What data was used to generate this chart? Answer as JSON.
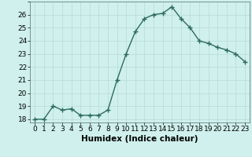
{
  "xlabel": "Humidex (Indice chaleur)",
  "x": [
    0,
    1,
    2,
    3,
    4,
    5,
    6,
    7,
    8,
    9,
    10,
    11,
    12,
    13,
    14,
    15,
    16,
    17,
    18,
    19,
    20,
    21,
    22,
    23
  ],
  "y": [
    18.0,
    18.0,
    19.0,
    18.7,
    18.8,
    18.3,
    18.3,
    18.3,
    18.7,
    21.0,
    23.0,
    24.7,
    25.7,
    26.0,
    26.1,
    26.6,
    25.7,
    25.0,
    24.0,
    23.8,
    23.5,
    23.3,
    23.0,
    22.4
  ],
  "line_color": "#2e6b5e",
  "marker": "+",
  "marker_size": 4,
  "bg_color": "#cff0ec",
  "grid_major_color": "#b8dbd6",
  "grid_minor_color": "#ddf5f2",
  "ylim": [
    17.75,
    27.0
  ],
  "xlim": [
    -0.5,
    23.5
  ],
  "yticks": [
    18,
    19,
    20,
    21,
    22,
    23,
    24,
    25,
    26
  ],
  "xticks": [
    0,
    1,
    2,
    3,
    4,
    5,
    6,
    7,
    8,
    9,
    10,
    11,
    12,
    13,
    14,
    15,
    16,
    17,
    18,
    19,
    20,
    21,
    22,
    23
  ],
  "xlabel_fontsize": 7.5,
  "tick_fontsize": 6.5,
  "line_width": 1.0
}
